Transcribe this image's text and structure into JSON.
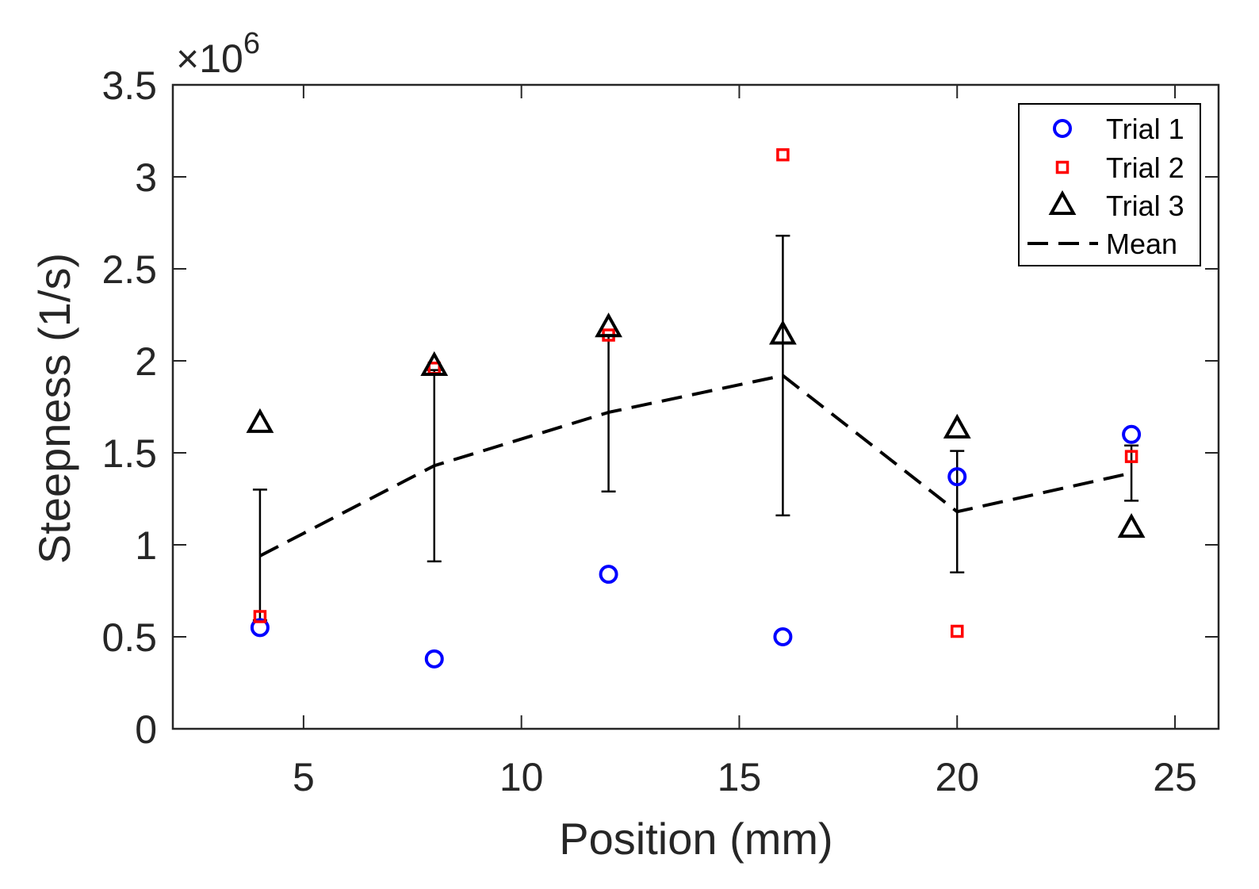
{
  "chart_data": {
    "type": "scatter",
    "title": "",
    "xlabel": "Position (mm)",
    "ylabel": "Steepness (1/s)",
    "y_multiplier": "10^6",
    "multiplier_base": "×10",
    "multiplier_exp": "6",
    "xlim": [
      2,
      26
    ],
    "ylim": [
      0,
      3.5
    ],
    "xticks": [
      5,
      10,
      15,
      20,
      25
    ],
    "xtick_labels": [
      "5",
      "10",
      "15",
      "20",
      "25"
    ],
    "yticks": [
      0,
      0.5,
      1,
      1.5,
      2,
      2.5,
      3,
      3.5
    ],
    "ytick_labels": [
      "0",
      "0.5",
      "1",
      "1.5",
      "2",
      "2.5",
      "3",
      "3.5"
    ],
    "legend_position": "top-right",
    "series": [
      {
        "name": "Trial 1",
        "marker": "circle",
        "color": "#0000ff",
        "x": [
          4,
          8,
          12,
          16,
          20,
          24
        ],
        "y": [
          0.55,
          0.38,
          0.84,
          0.5,
          1.37,
          1.6
        ]
      },
      {
        "name": "Trial 2",
        "marker": "square",
        "color": "#ff0000",
        "x": [
          4,
          8,
          12,
          16,
          20,
          24
        ],
        "y": [
          0.61,
          1.96,
          2.14,
          3.12,
          0.53,
          1.48
        ]
      },
      {
        "name": "Trial 3",
        "marker": "triangle",
        "color": "#000000",
        "x": [
          4,
          8,
          12,
          16,
          20,
          24
        ],
        "y": [
          1.66,
          1.97,
          2.18,
          2.14,
          1.63,
          1.09
        ]
      },
      {
        "name": "Mean",
        "marker": "dashed-line",
        "color": "#000000",
        "x": [
          4,
          8,
          12,
          16,
          20,
          24
        ],
        "y": [
          0.94,
          1.43,
          1.72,
          1.92,
          1.18,
          1.39
        ],
        "error_low": [
          0.59,
          0.91,
          1.29,
          1.16,
          0.85,
          1.24
        ],
        "error_high": [
          1.3,
          1.95,
          2.14,
          2.68,
          1.51,
          1.54
        ]
      }
    ]
  }
}
